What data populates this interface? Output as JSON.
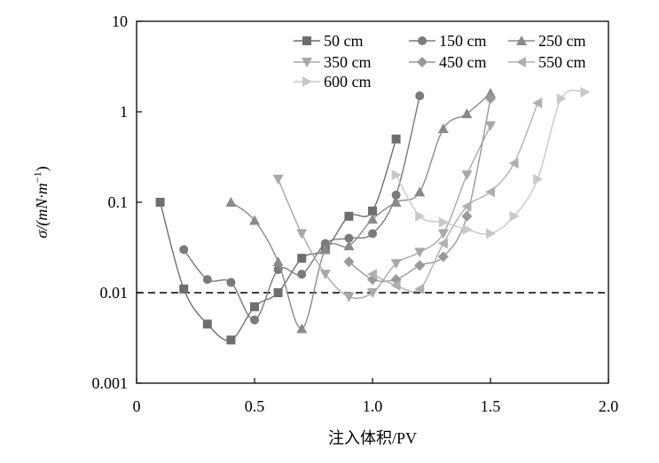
{
  "chart_data": {
    "type": "scatter",
    "title": "",
    "xlabel": "注入体积/PV",
    "ylabel": "σ/(mN·m⁻¹)",
    "ylabel_parts": {
      "main": "σ/(mN·m",
      "sup": "−1",
      "close": ")"
    },
    "xlim": [
      0,
      2.0
    ],
    "ylim": [
      0.001,
      10
    ],
    "yscale": "log",
    "xticks": [
      0,
      0.5,
      1.0,
      1.5,
      2.0
    ],
    "xtick_labels": [
      "0",
      "0.5",
      "1.0",
      "1.5",
      "2.0"
    ],
    "yticks": [
      0.001,
      0.01,
      0.1,
      1,
      10
    ],
    "ytick_labels": [
      "0.001",
      "0.01",
      "0.1",
      "1",
      "10"
    ],
    "grid": false,
    "legend_position": "top-right",
    "reference_line": {
      "y": 0.01,
      "style": "dashed"
    },
    "series": [
      {
        "name": "50 cm",
        "marker": "square",
        "color": "#6e6e6e",
        "x": [
          0.1,
          0.2,
          0.3,
          0.4,
          0.5,
          0.6,
          0.7,
          0.8,
          0.9,
          1.0,
          1.1
        ],
        "y": [
          0.1,
          0.011,
          0.0045,
          0.003,
          0.007,
          0.01,
          0.024,
          0.03,
          0.07,
          0.08,
          0.5
        ]
      },
      {
        "name": "150 cm",
        "marker": "circle",
        "color": "#7a7a7a",
        "x": [
          0.2,
          0.3,
          0.4,
          0.5,
          0.6,
          0.7,
          0.8,
          0.9,
          1.0,
          1.1,
          1.2
        ],
        "y": [
          0.03,
          0.014,
          0.013,
          0.005,
          0.018,
          0.016,
          0.035,
          0.04,
          0.045,
          0.12,
          1.5
        ]
      },
      {
        "name": "250 cm",
        "marker": "triangle-up",
        "color": "#8a8a8a",
        "x": [
          0.4,
          0.5,
          0.6,
          0.7,
          0.8,
          0.9,
          1.0,
          1.1,
          1.2,
          1.3,
          1.4,
          1.5
        ],
        "y": [
          0.1,
          0.063,
          0.022,
          0.004,
          0.03,
          0.033,
          0.065,
          0.1,
          0.13,
          0.65,
          0.95,
          1.6
        ]
      },
      {
        "name": "350 cm",
        "marker": "triangle-down",
        "color": "#a8a8a8",
        "x": [
          0.6,
          0.7,
          0.8,
          0.9,
          1.0,
          1.1,
          1.2,
          1.3,
          1.4,
          1.5
        ],
        "y": [
          0.18,
          0.045,
          0.016,
          0.009,
          0.01,
          0.021,
          0.028,
          0.045,
          0.2,
          0.7
        ]
      },
      {
        "name": "450 cm",
        "marker": "diamond",
        "color": "#999999",
        "x": [
          0.9,
          1.0,
          1.1,
          1.2,
          1.3,
          1.4,
          1.5
        ],
        "y": [
          0.022,
          0.014,
          0.014,
          0.02,
          0.025,
          0.07,
          1.4
        ]
      },
      {
        "name": "550 cm",
        "marker": "triangle-left",
        "color": "#b0b0b0",
        "x": [
          1.0,
          1.1,
          1.2,
          1.3,
          1.4,
          1.5,
          1.6,
          1.7
        ],
        "y": [
          0.016,
          0.012,
          0.011,
          0.035,
          0.09,
          0.13,
          0.27,
          1.25
        ]
      },
      {
        "name": "600 cm",
        "marker": "triangle-right",
        "color": "#c8c8c8",
        "x": [
          1.1,
          1.2,
          1.3,
          1.4,
          1.5,
          1.6,
          1.7,
          1.8,
          1.9
        ],
        "y": [
          0.2,
          0.07,
          0.06,
          0.05,
          0.045,
          0.07,
          0.18,
          1.4,
          1.65
        ]
      }
    ]
  }
}
